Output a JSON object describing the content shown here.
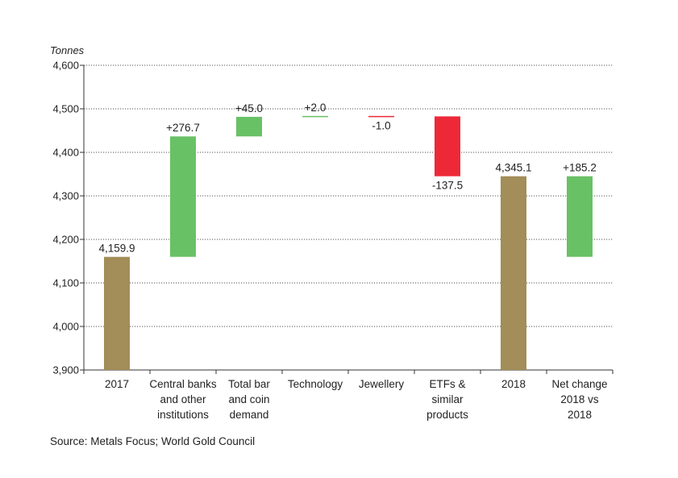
{
  "chart_data": {
    "type": "waterfall",
    "title": "",
    "ylabel": "Tonnes",
    "xlabel": "",
    "ylim": [
      3900,
      4600
    ],
    "yticks": [
      3900,
      4000,
      4100,
      4200,
      4300,
      4400,
      4500,
      4600
    ],
    "ytick_labels": [
      "3,900",
      "4,000",
      "4,100",
      "4,200",
      "4,300",
      "4,400",
      "4,500",
      "4,600"
    ],
    "grid": "horizontal dotted",
    "colors": {
      "total": "#A38D58",
      "increase": "#69C166",
      "decrease": "#ED2938",
      "axis": "#333333"
    },
    "bars": [
      {
        "category": [
          "2017"
        ],
        "kind": "total",
        "start": 3900,
        "end": 4159.9,
        "label": "4,159.9"
      },
      {
        "category": [
          "Central banks",
          "and other",
          "institutions"
        ],
        "kind": "increase",
        "start": 4159.9,
        "end": 4436.6,
        "label": "+276.7"
      },
      {
        "category": [
          "Total bar",
          "and coin",
          "demand"
        ],
        "kind": "increase",
        "start": 4436.6,
        "end": 4481.6,
        "label": "+45.0"
      },
      {
        "category": [
          "Technology"
        ],
        "kind": "increase",
        "start": 4481.6,
        "end": 4483.6,
        "label": "+2.0"
      },
      {
        "category": [
          "Jewellery"
        ],
        "kind": "decrease",
        "start": 4483.6,
        "end": 4482.6,
        "label": "-1.0"
      },
      {
        "category": [
          "ETFs &",
          "similar",
          "products"
        ],
        "kind": "decrease",
        "start": 4482.6,
        "end": 4345.1,
        "label": "-137.5"
      },
      {
        "category": [
          "2018"
        ],
        "kind": "total",
        "start": 3900,
        "end": 4345.1,
        "label": "4,345.1"
      },
      {
        "category": [
          "Net change",
          "2018 vs",
          "2018"
        ],
        "kind": "increase",
        "start": 4159.9,
        "end": 4345.1,
        "label": "+185.2"
      }
    ]
  },
  "source": "Source: Metals Focus; World Gold Council"
}
